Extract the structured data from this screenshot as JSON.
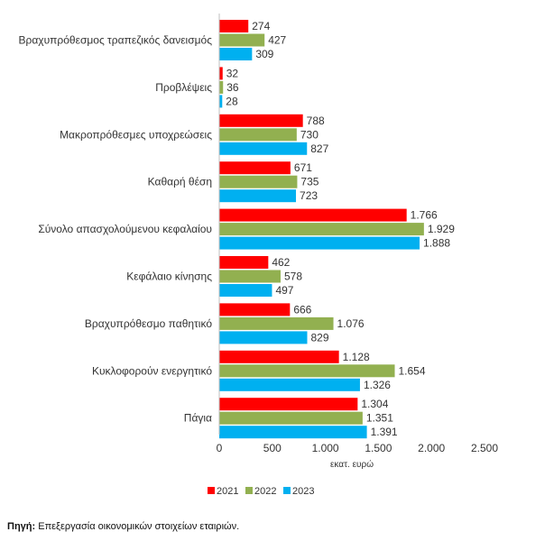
{
  "chart_data": {
    "type": "bar",
    "orientation": "horizontal",
    "categories": [
      "Βραχυπρόθεσμος τραπεζικός δανεισμός",
      "Προβλέψεις",
      "Μακροπρόθεσμες υποχρεώσεις",
      "Καθαρή θέση",
      "Σύνολο απασχολούμενου κεφαλαίου",
      "Κεφάλαιο κίνησης",
      "Βραχυπρόθεσμο παθητικό",
      "Κυκλοφορούν ενεργητικό",
      "Πάγια"
    ],
    "series": [
      {
        "name": "2021",
        "color": "#ff0000",
        "values": [
          274,
          32,
          788,
          671,
          1766,
          462,
          666,
          1128,
          1304
        ],
        "labels": [
          "274",
          "32",
          "788",
          "671",
          "1.766",
          "462",
          "666",
          "1.128",
          "1.304"
        ]
      },
      {
        "name": "2022",
        "color": "#92b050",
        "values": [
          427,
          36,
          730,
          735,
          1929,
          578,
          1076,
          1654,
          1351
        ],
        "labels": [
          "427",
          "36",
          "730",
          "735",
          "1.929",
          "578",
          "1.076",
          "1.654",
          "1.351"
        ]
      },
      {
        "name": "2023",
        "color": "#00b0f0",
        "values": [
          309,
          28,
          827,
          723,
          1888,
          497,
          829,
          1326,
          1391
        ],
        "labels": [
          "309",
          "28",
          "827",
          "723",
          "1.888",
          "497",
          "829",
          "1.326",
          "1.391"
        ]
      }
    ],
    "xlim": [
      0,
      2500
    ],
    "xticks": [
      0,
      500,
      1000,
      1500,
      2000,
      2500
    ],
    "xtick_labels": [
      "0",
      "500",
      "1.000",
      "1.500",
      "2.000",
      "2.500"
    ],
    "xlabel": "εκατ. ευρώ",
    "grid": false,
    "legend_position": "bottom"
  },
  "source": {
    "label": "Πηγή:",
    "text": " Επεξεργασία οικονομικών στοιχείων εταιριών."
  }
}
